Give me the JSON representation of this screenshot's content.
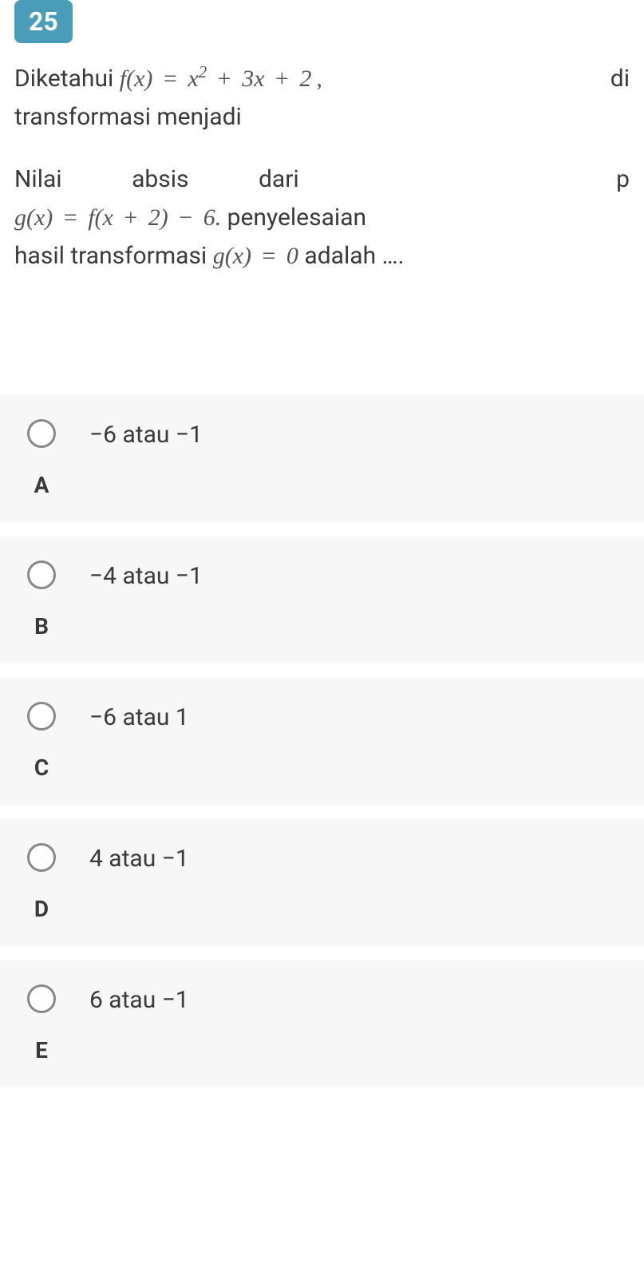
{
  "question": {
    "number": "25",
    "text_parts": {
      "diketahui": "Diketahui",
      "di_fragment": "di",
      "transformasi_menjadi": "transformasi menjadi",
      "nilai": "Nilai",
      "absis": "absis",
      "dari": "dari",
      "p_fragment": "p",
      "penyelesaian": "penyelesaian",
      "hasil_transformasi": "hasil transformasi",
      "adalah": "adalah …."
    },
    "formulas": {
      "fx": "f(x) = x² + 3x + 2,",
      "gx_def": "g(x) = f(x + 2) − 6.",
      "gx_zero": "g(x) = 0"
    }
  },
  "answers": [
    {
      "letter": "A",
      "text": "−6 atau −1"
    },
    {
      "letter": "B",
      "text": "−4 atau −1"
    },
    {
      "letter": "C",
      "text": "−6 atau 1"
    },
    {
      "letter": "D",
      "text": "4 atau −1"
    },
    {
      "letter": "E",
      "text": "6 atau −1"
    }
  ],
  "colors": {
    "badge_bg": "#4a9db8",
    "badge_text": "#ffffff",
    "body_text": "#3a3a3a",
    "option_bg": "#f7f7f7",
    "radio_border": "#888888"
  }
}
